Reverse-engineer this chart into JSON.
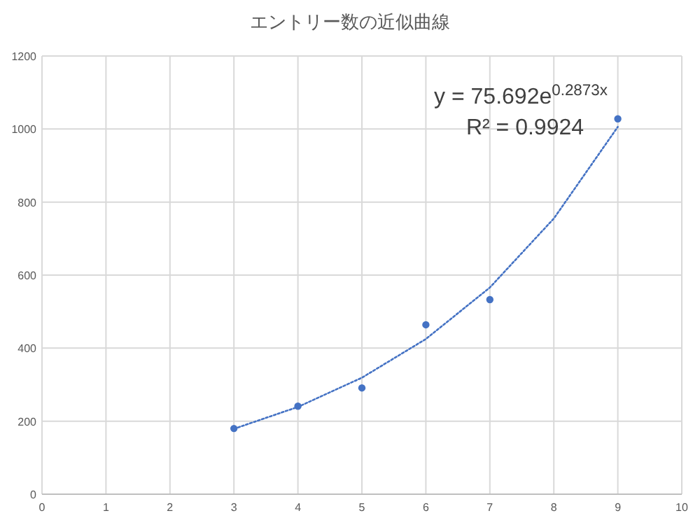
{
  "chart_data": {
    "type": "scatter",
    "title": "エントリー数の近似曲線",
    "series": [
      {
        "color": "#4472c4",
        "x": [
          3,
          4,
          5,
          6,
          7,
          9
        ],
        "values": [
          180,
          241,
          291,
          464,
          533,
          1028
        ]
      },
      {
        "type": "line",
        "color": "#4472c4",
        "line_style": "dotted",
        "marker": "none",
        "x": [
          3,
          4,
          5,
          6,
          7,
          8,
          9
        ],
        "values": [
          179,
          239,
          319,
          425,
          566,
          755,
          1006
        ]
      }
    ],
    "annotations": [
      "y = 75.692e$^{0.2873x}$",
      "R² = 0.9924"
    ],
    "xlim": [
      0,
      10
    ],
    "xticks": [
      0,
      1,
      2,
      3,
      4,
      5,
      6,
      7,
      8,
      9,
      10
    ],
    "ylim": [
      0,
      1200
    ],
    "yticks": [
      0,
      200,
      400,
      600,
      800,
      1000,
      1200
    ],
    "grid": true
  }
}
